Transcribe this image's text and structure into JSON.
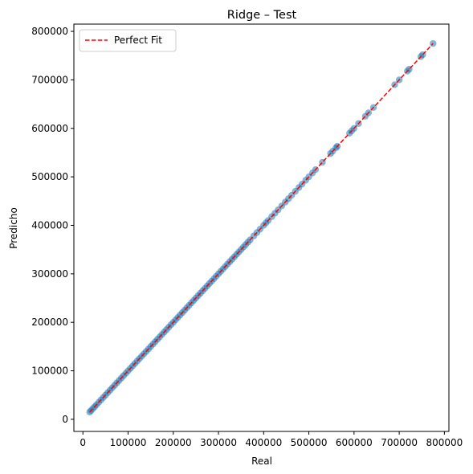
{
  "chart_data": {
    "type": "scatter",
    "title": "Ridge – Test",
    "xlabel": "Real",
    "ylabel": "Predicho",
    "xlim": [
      -20000,
      810000
    ],
    "ylim": [
      -25000,
      815000
    ],
    "xticks": [
      0,
      100000,
      200000,
      300000,
      400000,
      500000,
      600000,
      700000,
      800000
    ],
    "yticks": [
      0,
      100000,
      200000,
      300000,
      400000,
      500000,
      600000,
      700000,
      800000
    ],
    "grid": false,
    "legend": {
      "position": "top-left",
      "entries": [
        "Perfect Fit"
      ]
    },
    "colors": {
      "points": "#1f77b4",
      "fit_line": "#ff0000"
    },
    "fit_line": {
      "name": "Perfect Fit",
      "x": [
        15000,
        775000
      ],
      "y": [
        15000,
        775000
      ]
    },
    "series": [
      {
        "x": [
          15000,
          18000,
          22000,
          26000,
          30000,
          35000,
          40000,
          45000,
          50000,
          55000,
          60000,
          65000,
          70000,
          75000,
          80000,
          85000,
          90000,
          95000,
          100000,
          105000,
          110000,
          115000,
          120000,
          125000,
          130000,
          135000,
          140000,
          145000,
          150000,
          155000,
          160000,
          165000,
          170000,
          175000,
          180000,
          185000,
          190000,
          195000,
          200000,
          205000,
          210000,
          215000,
          220000,
          225000,
          230000,
          235000,
          240000,
          245000,
          250000,
          255000,
          260000,
          265000,
          270000,
          275000,
          280000,
          285000,
          290000,
          295000,
          300000,
          305000,
          310000,
          315000,
          320000,
          325000,
          330000,
          335000,
          340000,
          345000,
          350000,
          355000,
          360000,
          365000,
          370000,
          378000,
          385000,
          392000,
          400000,
          405000,
          410000,
          418000,
          425000,
          432000,
          440000,
          448000,
          455000,
          462000,
          470000,
          478000,
          485000,
          493000,
          500000,
          508000,
          515000,
          530000,
          548000,
          553000,
          560000,
          563000,
          590000,
          595000,
          600000,
          610000,
          625000,
          632000,
          643000,
          690000,
          700000,
          718000,
          722000,
          748000,
          752000,
          775000
        ],
        "y": [
          15000,
          18000,
          22000,
          26000,
          30000,
          35000,
          40000,
          45000,
          50000,
          55000,
          60000,
          65000,
          70000,
          75000,
          80000,
          85000,
          90000,
          95000,
          100000,
          105000,
          110000,
          115000,
          120000,
          125000,
          130000,
          135000,
          140000,
          145000,
          150000,
          155000,
          160000,
          165000,
          170000,
          175000,
          180000,
          185000,
          190000,
          195000,
          200000,
          205000,
          210000,
          215000,
          220000,
          225000,
          230000,
          235000,
          240000,
          245000,
          250000,
          255000,
          260000,
          265000,
          270000,
          275000,
          280000,
          285000,
          290000,
          295000,
          300000,
          305000,
          310000,
          315000,
          320000,
          325000,
          330000,
          335000,
          340000,
          345000,
          350000,
          355000,
          360000,
          365000,
          370000,
          378000,
          385000,
          392000,
          400000,
          405000,
          410000,
          418000,
          425000,
          432000,
          440000,
          448000,
          455000,
          462000,
          470000,
          478000,
          485000,
          493000,
          500000,
          508000,
          515000,
          530000,
          548000,
          553000,
          560000,
          563000,
          590000,
          595000,
          600000,
          610000,
          625000,
          632000,
          643000,
          690000,
          700000,
          718000,
          722000,
          748000,
          752000,
          775000
        ]
      }
    ]
  }
}
